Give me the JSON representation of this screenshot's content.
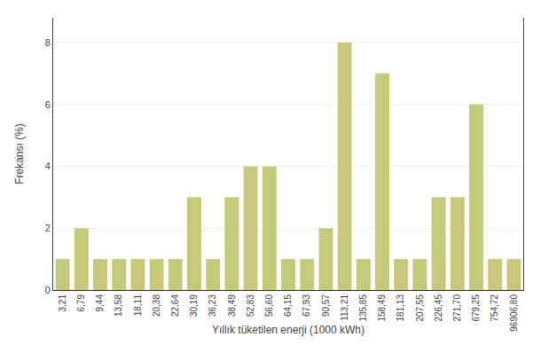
{
  "chart_data": {
    "type": "bar",
    "categories": [
      "3,21",
      "6,79",
      "9,44",
      "13,58",
      "18,11",
      "20,38",
      "22,64",
      "30,19",
      "36,23",
      "38,49",
      "52,83",
      "56,60",
      "64,15",
      "67,93",
      "90,57",
      "113,21",
      "135,85",
      "158,49",
      "181,13",
      "207,55",
      "226,45",
      "271,70",
      "679,25",
      "754,72",
      "96906,80"
    ],
    "values": [
      1,
      2,
      1,
      1,
      1,
      1,
      1,
      3,
      1,
      3,
      4,
      4,
      1,
      1,
      2,
      8,
      1,
      7,
      1,
      1,
      3,
      3,
      6,
      1,
      1
    ],
    "color": "#c8c87a",
    "xlabel": "Yıllık tüketilen enerji (1000 kWh)",
    "ylabel": "Frekansı (%)",
    "ylim": [
      0,
      8.8
    ],
    "yticks": [
      0,
      2,
      4,
      6,
      8
    ],
    "grid": true
  }
}
